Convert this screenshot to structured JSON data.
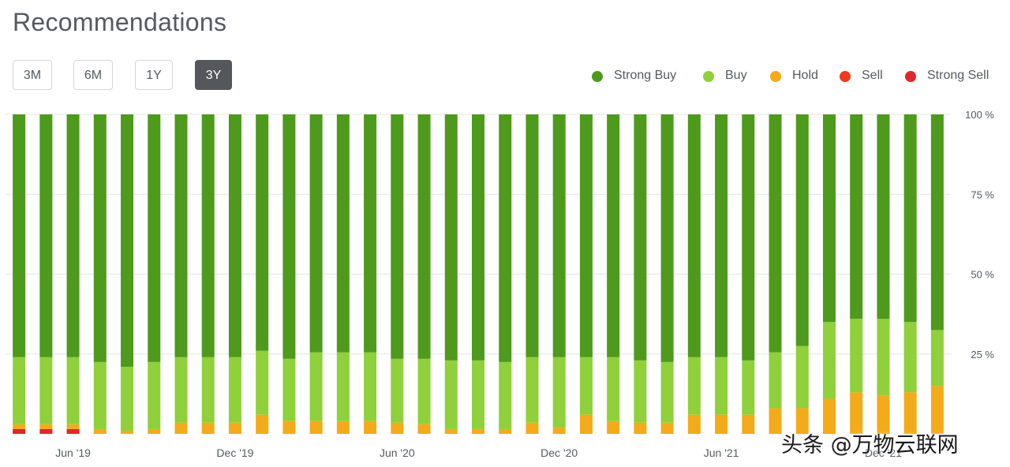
{
  "page": {
    "title": "Recommendations",
    "watermark": "头条 @万物云联网"
  },
  "range_buttons": [
    {
      "label": "3M",
      "active": false
    },
    {
      "label": "6M",
      "active": false
    },
    {
      "label": "1Y",
      "active": false
    },
    {
      "label": "3Y",
      "active": true
    }
  ],
  "colors": {
    "strong_buy": "#4e9a1c",
    "buy": "#8fd03b",
    "hold": "#f4ab19",
    "sell": "#ee3b1e",
    "strong_sell": "#e0272c",
    "grid": "#e3e3e6",
    "axis_text": "#555a60"
  },
  "chart_data": {
    "type": "bar",
    "stacked": true,
    "normalized_percent": true,
    "title": "Recommendations",
    "ylim": [
      0,
      100
    ],
    "y_ticks": [
      {
        "value": 100,
        "label": "100 %"
      },
      {
        "value": 75,
        "label": "75 %"
      },
      {
        "value": 50,
        "label": "50 %"
      },
      {
        "value": 25,
        "label": "25 %"
      }
    ],
    "x_tick_labels": [
      {
        "index": 2,
        "label": "Jun '19"
      },
      {
        "index": 8,
        "label": "Dec '19"
      },
      {
        "index": 14,
        "label": "Jun '20"
      },
      {
        "index": 20,
        "label": "Dec '20"
      },
      {
        "index": 26,
        "label": "Jun '21"
      },
      {
        "index": 32,
        "label": "Dec '21"
      }
    ],
    "legend_position": "top-right",
    "grid": true,
    "series": [
      {
        "name": "Strong Buy",
        "color_key": "strong_buy",
        "values": [
          76,
          76,
          76,
          77.5,
          79,
          77.5,
          76,
          76,
          76,
          74,
          76.5,
          74.5,
          74.5,
          74.5,
          76.5,
          76.5,
          77,
          77,
          77.5,
          76,
          76,
          76,
          76,
          77,
          77.5,
          76,
          76,
          77,
          74.5,
          72.5,
          65,
          64,
          64,
          65,
          67.5
        ]
      },
      {
        "name": "Buy",
        "color_key": "buy",
        "values": [
          21,
          21,
          21,
          21,
          20,
          21,
          20.5,
          20.5,
          20.5,
          20,
          19.5,
          21.5,
          21.5,
          21.5,
          20,
          20.5,
          21.5,
          21.5,
          21,
          20.5,
          22,
          18,
          20,
          19.5,
          19,
          18,
          18,
          17,
          17.5,
          19.5,
          24,
          23,
          24,
          22,
          17.5
        ]
      },
      {
        "name": "Hold",
        "color_key": "hold",
        "values": [
          1.5,
          1.5,
          1.5,
          1.5,
          1,
          1.5,
          3.5,
          3.5,
          3.5,
          6,
          4,
          4,
          4,
          4,
          3.5,
          3,
          1.5,
          1.5,
          1.5,
          3.5,
          2,
          6,
          4,
          3.5,
          3.5,
          6,
          6,
          6,
          8,
          8,
          11,
          13,
          12,
          13,
          15
        ]
      },
      {
        "name": "Sell",
        "color_key": "sell",
        "values": [
          0,
          0,
          0,
          0,
          0,
          0,
          0,
          0,
          0,
          0,
          0,
          0,
          0,
          0,
          0,
          0,
          0,
          0,
          0,
          0,
          0,
          0,
          0,
          0,
          0,
          0,
          0,
          0,
          0,
          0,
          0,
          0,
          0,
          0,
          0
        ]
      },
      {
        "name": "Strong Sell",
        "color_key": "strong_sell",
        "values": [
          1.5,
          1.5,
          1.5,
          0,
          0,
          0,
          0,
          0,
          0,
          0,
          0,
          0,
          0,
          0,
          0,
          0,
          0,
          0,
          0,
          0,
          0,
          0,
          0,
          0,
          0,
          0,
          0,
          0,
          0,
          0,
          0,
          0,
          0,
          0,
          0
        ]
      }
    ]
  }
}
